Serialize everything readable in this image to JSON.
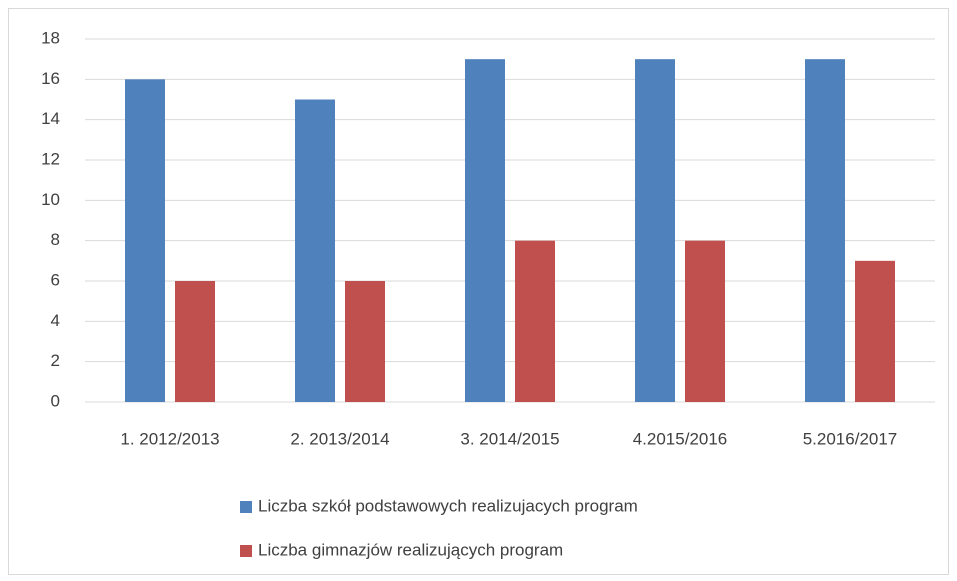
{
  "chart_data": {
    "type": "bar",
    "categories": [
      "1. 2012/2013",
      "2. 2013/2014",
      "3. 2014/2015",
      "4.2015/2016",
      "5.2016/2017"
    ],
    "series": [
      {
        "name": "Liczba szkół podstawowych realizujacych program",
        "color": "#4f81bd",
        "values": [
          16,
          15,
          17,
          17,
          17
        ]
      },
      {
        "name": "Liczba gimnazjów realizujących program",
        "color": "#c0504d",
        "values": [
          6,
          6,
          8,
          8,
          7
        ]
      }
    ],
    "ylim": [
      0,
      18
    ],
    "yticks": [
      0,
      2,
      4,
      6,
      8,
      10,
      12,
      14,
      16,
      18
    ],
    "grid": true,
    "legend": "bottom"
  }
}
